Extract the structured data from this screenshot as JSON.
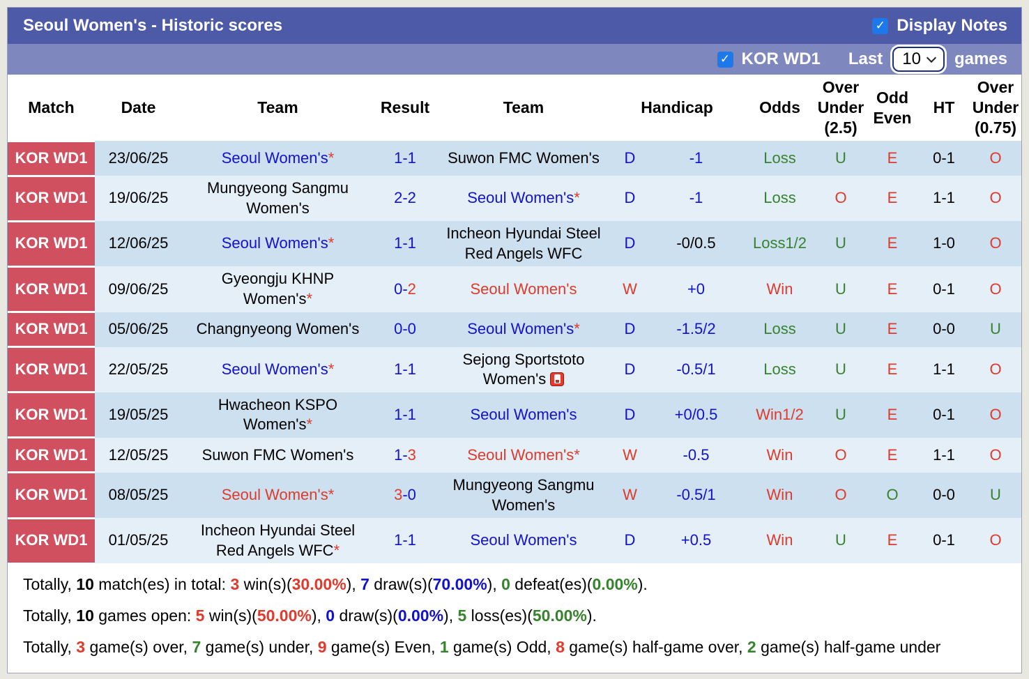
{
  "colors": {
    "bar_dark": "#4d5aa7",
    "bar_light": "#7e88bf",
    "badge": "#d0505f",
    "row_odd": "#cde0ef",
    "row_even": "#e4eff8",
    "blue": "#1212cc",
    "red": "#df3a2c",
    "green": "#37822e",
    "checkbox": "#1d79ea"
  },
  "symbols": {
    "star": "*",
    "check": "✓"
  },
  "title_bar": {
    "title": "Seoul Women's - Historic scores",
    "display_notes_label": "Display Notes"
  },
  "filter_bar": {
    "league_label": "KOR WD1",
    "last_label": "Last",
    "games_value": "10",
    "games_label": "games"
  },
  "table": {
    "headers": [
      "Match",
      "Date",
      "Team",
      "Result",
      "Team",
      "Handicap",
      "Odds",
      "Over\nUnder\n(2.5)",
      "Odd\nEven",
      "HT",
      "Over\nUnder\n(0.75)"
    ],
    "rows": [
      {
        "match": "KOR WD1",
        "date": "23/06/25",
        "tall": false,
        "team1": {
          "name": "Seoul Women's",
          "star": true,
          "color": "blue"
        },
        "result": [
          {
            "t": "1-1",
            "c": "blue"
          }
        ],
        "team2": {
          "name": "Suwon FMC Women's",
          "star": false,
          "color": "black"
        },
        "dw": {
          "t": "D",
          "c": "blue"
        },
        "handicap": {
          "t": "-1",
          "c": "blue"
        },
        "odds": {
          "t": "Loss",
          "c": "green"
        },
        "ou25": {
          "t": "U",
          "c": "green"
        },
        "oddeven": {
          "t": "E",
          "c": "red"
        },
        "ht": {
          "t": "0-1",
          "c": "black"
        },
        "ou075": {
          "t": "O",
          "c": "red"
        }
      },
      {
        "match": "KOR WD1",
        "date": "19/06/25",
        "tall": true,
        "team1": {
          "name": "Mungyeong Sangmu Women's",
          "star": false,
          "color": "black"
        },
        "result": [
          {
            "t": "2-2",
            "c": "blue"
          }
        ],
        "team2": {
          "name": "Seoul Women's",
          "star": true,
          "color": "blue"
        },
        "dw": {
          "t": "D",
          "c": "blue"
        },
        "handicap": {
          "t": "-1",
          "c": "blue"
        },
        "odds": {
          "t": "Loss",
          "c": "green"
        },
        "ou25": {
          "t": "O",
          "c": "red"
        },
        "oddeven": {
          "t": "E",
          "c": "red"
        },
        "ht": {
          "t": "1-1",
          "c": "black"
        },
        "ou075": {
          "t": "O",
          "c": "red"
        }
      },
      {
        "match": "KOR WD1",
        "date": "12/06/25",
        "tall": true,
        "team1": {
          "name": "Seoul Women's",
          "star": true,
          "color": "blue"
        },
        "result": [
          {
            "t": "1-1",
            "c": "blue"
          }
        ],
        "team2": {
          "name": "Incheon Hyundai Steel Red Angels WFC",
          "star": false,
          "color": "black"
        },
        "dw": {
          "t": "D",
          "c": "blue"
        },
        "handicap": {
          "t": "-0/0.5",
          "c": "black"
        },
        "odds": {
          "t": "Loss1/2",
          "c": "green"
        },
        "ou25": {
          "t": "U",
          "c": "green"
        },
        "oddeven": {
          "t": "E",
          "c": "red"
        },
        "ht": {
          "t": "1-0",
          "c": "black"
        },
        "ou075": {
          "t": "O",
          "c": "red"
        }
      },
      {
        "match": "KOR WD1",
        "date": "09/06/25",
        "tall": true,
        "team1": {
          "name": "Gyeongju KHNP Women's",
          "star": true,
          "color": "black"
        },
        "result": [
          {
            "t": "0-",
            "c": "blue"
          },
          {
            "t": "2",
            "c": "red"
          }
        ],
        "team2": {
          "name": "Seoul Women's",
          "star": false,
          "color": "red"
        },
        "dw": {
          "t": "W",
          "c": "red"
        },
        "handicap": {
          "t": "+0",
          "c": "blue"
        },
        "odds": {
          "t": "Win",
          "c": "red"
        },
        "ou25": {
          "t": "U",
          "c": "green"
        },
        "oddeven": {
          "t": "E",
          "c": "red"
        },
        "ht": {
          "t": "0-1",
          "c": "black"
        },
        "ou075": {
          "t": "O",
          "c": "red"
        }
      },
      {
        "match": "KOR WD1",
        "date": "05/06/25",
        "tall": false,
        "team1": {
          "name": "Changnyeong Women's",
          "star": false,
          "color": "black"
        },
        "result": [
          {
            "t": "0-0",
            "c": "blue"
          }
        ],
        "team2": {
          "name": "Seoul Women's",
          "star": true,
          "color": "blue"
        },
        "dw": {
          "t": "D",
          "c": "blue"
        },
        "handicap": {
          "t": "-1.5/2",
          "c": "blue"
        },
        "odds": {
          "t": "Loss",
          "c": "green"
        },
        "ou25": {
          "t": "U",
          "c": "green"
        },
        "oddeven": {
          "t": "E",
          "c": "red"
        },
        "ht": {
          "t": "0-0",
          "c": "black"
        },
        "ou075": {
          "t": "U",
          "c": "green"
        }
      },
      {
        "match": "KOR WD1",
        "date": "22/05/25",
        "tall": true,
        "team1": {
          "name": "Seoul Women's",
          "star": true,
          "color": "blue"
        },
        "result": [
          {
            "t": "1-1",
            "c": "blue"
          }
        ],
        "team2": {
          "name": "Sejong Sportstoto Women's",
          "star": false,
          "color": "black",
          "card": true
        },
        "dw": {
          "t": "D",
          "c": "blue"
        },
        "handicap": {
          "t": "-0.5/1",
          "c": "blue"
        },
        "odds": {
          "t": "Loss",
          "c": "green"
        },
        "ou25": {
          "t": "U",
          "c": "green"
        },
        "oddeven": {
          "t": "E",
          "c": "red"
        },
        "ht": {
          "t": "1-1",
          "c": "black"
        },
        "ou075": {
          "t": "O",
          "c": "red"
        }
      },
      {
        "match": "KOR WD1",
        "date": "19/05/25",
        "tall": true,
        "team1": {
          "name": "Hwacheon KSPO Women's",
          "star": true,
          "color": "black"
        },
        "result": [
          {
            "t": "1-1",
            "c": "blue"
          }
        ],
        "team2": {
          "name": "Seoul Women's",
          "star": false,
          "color": "blue"
        },
        "dw": {
          "t": "D",
          "c": "blue"
        },
        "handicap": {
          "t": "+0/0.5",
          "c": "blue"
        },
        "odds": {
          "t": "Win1/2",
          "c": "red"
        },
        "ou25": {
          "t": "U",
          "c": "green"
        },
        "oddeven": {
          "t": "E",
          "c": "red"
        },
        "ht": {
          "t": "0-1",
          "c": "black"
        },
        "ou075": {
          "t": "O",
          "c": "red"
        }
      },
      {
        "match": "KOR WD1",
        "date": "12/05/25",
        "tall": false,
        "team1": {
          "name": "Suwon FMC Women's",
          "star": false,
          "color": "black"
        },
        "result": [
          {
            "t": "1-",
            "c": "blue"
          },
          {
            "t": "3",
            "c": "red"
          }
        ],
        "team2": {
          "name": "Seoul Women's",
          "star": true,
          "color": "red"
        },
        "dw": {
          "t": "W",
          "c": "red"
        },
        "handicap": {
          "t": "-0.5",
          "c": "blue"
        },
        "odds": {
          "t": "Win",
          "c": "red"
        },
        "ou25": {
          "t": "O",
          "c": "red"
        },
        "oddeven": {
          "t": "E",
          "c": "red"
        },
        "ht": {
          "t": "1-1",
          "c": "black"
        },
        "ou075": {
          "t": "O",
          "c": "red"
        }
      },
      {
        "match": "KOR WD1",
        "date": "08/05/25",
        "tall": true,
        "team1": {
          "name": "Seoul Women's",
          "star": true,
          "color": "red"
        },
        "result": [
          {
            "t": "3",
            "c": "red"
          },
          {
            "t": "-0",
            "c": "blue"
          }
        ],
        "team2": {
          "name": "Mungyeong Sangmu Women's",
          "star": false,
          "color": "black"
        },
        "dw": {
          "t": "W",
          "c": "red"
        },
        "handicap": {
          "t": "-0.5/1",
          "c": "blue"
        },
        "odds": {
          "t": "Win",
          "c": "red"
        },
        "ou25": {
          "t": "O",
          "c": "red"
        },
        "oddeven": {
          "t": "O",
          "c": "green"
        },
        "ht": {
          "t": "0-0",
          "c": "black"
        },
        "ou075": {
          "t": "U",
          "c": "green"
        }
      },
      {
        "match": "KOR WD1",
        "date": "01/05/25",
        "tall": true,
        "team1": {
          "name": "Incheon Hyundai Steel Red Angels WFC",
          "star": true,
          "color": "black"
        },
        "result": [
          {
            "t": "1-1",
            "c": "blue"
          }
        ],
        "team2": {
          "name": "Seoul Women's",
          "star": false,
          "color": "blue"
        },
        "dw": {
          "t": "D",
          "c": "blue"
        },
        "handicap": {
          "t": "+0.5",
          "c": "blue"
        },
        "odds": {
          "t": "Win",
          "c": "red"
        },
        "ou25": {
          "t": "U",
          "c": "green"
        },
        "oddeven": {
          "t": "E",
          "c": "red"
        },
        "ht": {
          "t": "0-1",
          "c": "black"
        },
        "ou075": {
          "t": "O",
          "c": "red"
        }
      }
    ]
  },
  "summary": {
    "lines": [
      [
        {
          "t": "Totally, "
        },
        {
          "t": "10",
          "b": true
        },
        {
          "t": " match(es) in total: "
        },
        {
          "t": "3",
          "c": "red",
          "b": true
        },
        {
          "t": " win(s)("
        },
        {
          "t": "30.00%",
          "c": "red",
          "b": true
        },
        {
          "t": "), "
        },
        {
          "t": "7",
          "c": "blue",
          "b": true
        },
        {
          "t": " draw(s)("
        },
        {
          "t": "70.00%",
          "c": "blue",
          "b": true
        },
        {
          "t": "), "
        },
        {
          "t": "0",
          "c": "green",
          "b": true
        },
        {
          "t": " defeat(es)("
        },
        {
          "t": "0.00%",
          "c": "green",
          "b": true
        },
        {
          "t": ")."
        }
      ],
      [
        {
          "t": "Totally, "
        },
        {
          "t": "10",
          "b": true
        },
        {
          "t": " games open: "
        },
        {
          "t": "5",
          "c": "red",
          "b": true
        },
        {
          "t": " win(s)("
        },
        {
          "t": "50.00%",
          "c": "red",
          "b": true
        },
        {
          "t": "), "
        },
        {
          "t": "0",
          "c": "blue",
          "b": true
        },
        {
          "t": " draw(s)("
        },
        {
          "t": "0.00%",
          "c": "blue",
          "b": true
        },
        {
          "t": "), "
        },
        {
          "t": "5",
          "c": "green",
          "b": true
        },
        {
          "t": " loss(es)("
        },
        {
          "t": "50.00%",
          "c": "green",
          "b": true
        },
        {
          "t": ")."
        }
      ],
      [
        {
          "t": "Totally, "
        },
        {
          "t": "3",
          "c": "red",
          "b": true
        },
        {
          "t": " game(s) over, "
        },
        {
          "t": "7",
          "c": "green",
          "b": true
        },
        {
          "t": " game(s) under, "
        },
        {
          "t": "9",
          "c": "red",
          "b": true
        },
        {
          "t": " game(s) Even, "
        },
        {
          "t": "1",
          "c": "green",
          "b": true
        },
        {
          "t": " game(s) Odd, "
        },
        {
          "t": "8",
          "c": "red",
          "b": true
        },
        {
          "t": " game(s) half-game over, "
        },
        {
          "t": "2",
          "c": "green",
          "b": true
        },
        {
          "t": " game(s) half-game under"
        }
      ]
    ]
  }
}
